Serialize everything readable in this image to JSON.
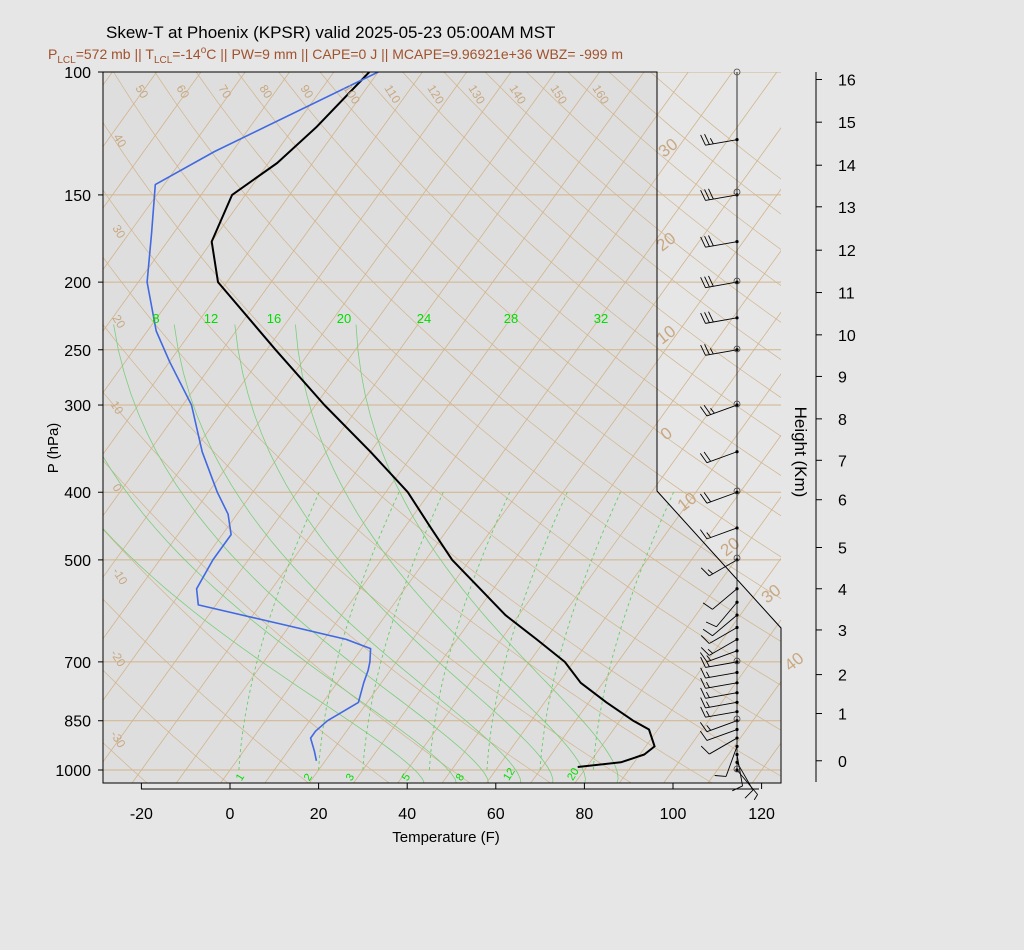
{
  "chart_data": {
    "type": "line",
    "title": "Skew-T at Phoenix (KPSR) valid 2025-05-23 05:00AM MST",
    "subtitle_parts": {
      "plcl_sym": "P",
      "plcl_sub": "LCL",
      "plcl_val": "=572 mb || ",
      "tlcl_sym": "T",
      "tlcl_sub": "LCL",
      "tlcl_val": "=-14",
      "tlcl_deg": "o",
      "rest": "C || PW=9 mm || CAPE=0 J || MCAPE=9.96921e+36 WBZ= -999 m"
    },
    "xlabel": "Temperature (F)",
    "ylabel": "P (hPa)",
    "y2label": "Height (Km)",
    "x_ticks": [
      -20,
      0,
      20,
      40,
      60,
      80,
      100,
      120
    ],
    "p_ticks": [
      100,
      150,
      200,
      250,
      300,
      400,
      500,
      700,
      850,
      1000
    ],
    "height_ticks": [
      {
        "km": 16,
        "p": 102.5
      },
      {
        "km": 15,
        "p": 118
      },
      {
        "km": 14,
        "p": 136
      },
      {
        "km": 13,
        "p": 156
      },
      {
        "km": 12,
        "p": 180
      },
      {
        "km": 11,
        "p": 207
      },
      {
        "km": 10,
        "p": 238
      },
      {
        "km": 9,
        "p": 273
      },
      {
        "km": 8,
        "p": 314
      },
      {
        "km": 7,
        "p": 360
      },
      {
        "km": 6,
        "p": 410
      },
      {
        "km": 5,
        "p": 480
      },
      {
        "km": 4,
        "p": 550
      },
      {
        "km": 3,
        "p": 630
      },
      {
        "km": 2,
        "p": 730
      },
      {
        "km": 1,
        "p": 830
      },
      {
        "km": 0,
        "p": 970
      }
    ],
    "isotherm_labels_f": [
      -30,
      -20,
      -10,
      0,
      10,
      20,
      30,
      40,
      50,
      60,
      70,
      80,
      90,
      100,
      110,
      120,
      130,
      140,
      150,
      160
    ],
    "theta_e_labels": [
      "8",
      "12",
      "16",
      "20",
      "24",
      "28",
      "32"
    ],
    "mixing_ratio_labels": [
      "1",
      "2",
      "3",
      "5",
      "8",
      "12",
      "20"
    ],
    "series": [
      {
        "name": "temperature",
        "color": "#000000",
        "points": [
          {
            "t": 78,
            "p": 990
          },
          {
            "t": 87,
            "p": 975
          },
          {
            "t": 91,
            "p": 950
          },
          {
            "t": 92,
            "p": 925
          },
          {
            "t": 88,
            "p": 875
          },
          {
            "t": 83,
            "p": 850
          },
          {
            "t": 74,
            "p": 800
          },
          {
            "t": 65,
            "p": 750
          },
          {
            "t": 58,
            "p": 700
          },
          {
            "t": 48,
            "p": 650
          },
          {
            "t": 37,
            "p": 600
          },
          {
            "t": 27,
            "p": 550
          },
          {
            "t": 16,
            "p": 500
          },
          {
            "t": 6,
            "p": 450
          },
          {
            "t": -5,
            "p": 400
          },
          {
            "t": -20,
            "p": 350
          },
          {
            "t": -38,
            "p": 300
          },
          {
            "t": -58,
            "p": 250
          },
          {
            "t": -82,
            "p": 200
          },
          {
            "t": -90,
            "p": 175
          },
          {
            "t": -93,
            "p": 150
          },
          {
            "t": -88,
            "p": 135
          },
          {
            "t": -85,
            "p": 120
          },
          {
            "t": -82,
            "p": 100
          }
        ]
      },
      {
        "name": "dewpoint",
        "color": "#4169e1",
        "points": [
          {
            "t": 18,
            "p": 970
          },
          {
            "t": 16,
            "p": 940
          },
          {
            "t": 13,
            "p": 900
          },
          {
            "t": 13,
            "p": 880
          },
          {
            "t": 14,
            "p": 850
          },
          {
            "t": 18,
            "p": 800
          },
          {
            "t": 16,
            "p": 750
          },
          {
            "t": 15,
            "p": 720
          },
          {
            "t": 14,
            "p": 700
          },
          {
            "t": 12,
            "p": 670
          },
          {
            "t": 5,
            "p": 650
          },
          {
            "t": -11,
            "p": 620
          },
          {
            "t": -34,
            "p": 580
          },
          {
            "t": -37,
            "p": 550
          },
          {
            "t": -38,
            "p": 500
          },
          {
            "t": -38,
            "p": 460
          },
          {
            "t": -42,
            "p": 430
          },
          {
            "t": -48,
            "p": 400
          },
          {
            "t": -58,
            "p": 350
          },
          {
            "t": -68,
            "p": 300
          },
          {
            "t": -80,
            "p": 260
          },
          {
            "t": -88,
            "p": 235
          },
          {
            "t": -98,
            "p": 200
          },
          {
            "t": -105,
            "p": 170
          },
          {
            "t": -112,
            "p": 145
          },
          {
            "t": -104,
            "p": 130
          },
          {
            "t": -80,
            "p": 100
          }
        ]
      }
    ],
    "wind_profile": [
      {
        "p": 1000,
        "dir": 140,
        "kt": 5
      },
      {
        "p": 975,
        "dir": 150,
        "kt": 10
      },
      {
        "p": 950,
        "dir": 170,
        "kt": 10
      },
      {
        "p": 925,
        "dir": 200,
        "kt": 10
      },
      {
        "p": 900,
        "dir": 240,
        "kt": 10
      },
      {
        "p": 875,
        "dir": 250,
        "kt": 10
      },
      {
        "p": 850,
        "dir": 250,
        "kt": 15
      },
      {
        "p": 825,
        "dir": 260,
        "kt": 15
      },
      {
        "p": 800,
        "dir": 260,
        "kt": 15
      },
      {
        "p": 775,
        "dir": 260,
        "kt": 15
      },
      {
        "p": 750,
        "dir": 260,
        "kt": 15
      },
      {
        "p": 725,
        "dir": 260,
        "kt": 15
      },
      {
        "p": 700,
        "dir": 260,
        "kt": 15
      },
      {
        "p": 675,
        "dir": 250,
        "kt": 15
      },
      {
        "p": 650,
        "dir": 240,
        "kt": 15
      },
      {
        "p": 625,
        "dir": 240,
        "kt": 10
      },
      {
        "p": 600,
        "dir": 230,
        "kt": 10
      },
      {
        "p": 575,
        "dir": 220,
        "kt": 10
      },
      {
        "p": 550,
        "dir": 230,
        "kt": 10
      },
      {
        "p": 500,
        "dir": 240,
        "kt": 15
      },
      {
        "p": 450,
        "dir": 250,
        "kt": 15
      },
      {
        "p": 400,
        "dir": 250,
        "kt": 20
      },
      {
        "p": 350,
        "dir": 250,
        "kt": 20
      },
      {
        "p": 300,
        "dir": 250,
        "kt": 25
      },
      {
        "p": 250,
        "dir": 260,
        "kt": 25
      },
      {
        "p": 225,
        "dir": 260,
        "kt": 30
      },
      {
        "p": 200,
        "dir": 260,
        "kt": 30
      },
      {
        "p": 175,
        "dir": 260,
        "kt": 30
      },
      {
        "p": 150,
        "dir": 260,
        "kt": 30
      },
      {
        "p": 125,
        "dir": 260,
        "kt": 25
      }
    ],
    "grid": true
  }
}
